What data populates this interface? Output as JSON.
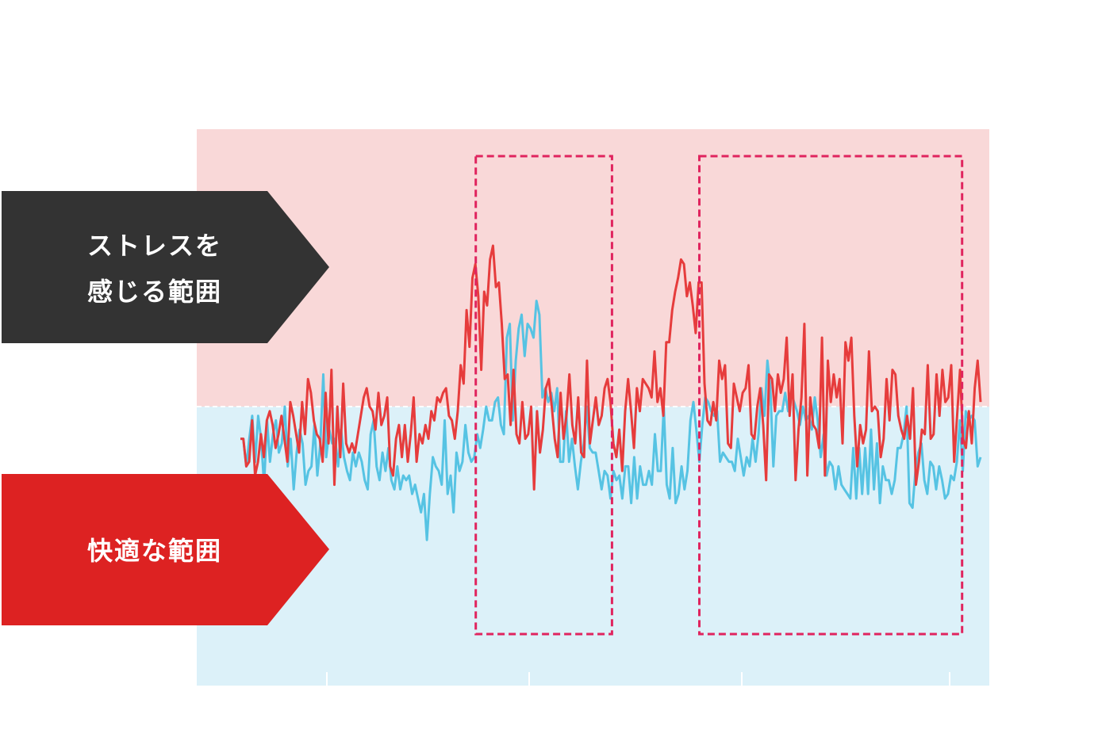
{
  "labels": {
    "stress_line1": "ストレスを",
    "stress_line2": "感じる範囲",
    "comfort": "快適な範囲"
  },
  "colors": {
    "stress_zone_bg": "#f9d8d8",
    "comfort_zone_bg": "#dcf1f9",
    "stress_series": "#e63c3c",
    "comfort_series": "#56c3e3",
    "highlight_box": "#e0245e",
    "stress_label_bg": "#333333",
    "comfort_label_bg": "#dd2222"
  },
  "chart_data": {
    "type": "line",
    "title": "",
    "xlabel": "",
    "ylabel": "",
    "xlim": [
      0,
      1000
    ],
    "ylim": [
      0,
      100
    ],
    "stress_threshold": 50,
    "grid": false,
    "legend": "none",
    "highlight_ranges": [
      [
        318,
        502
      ],
      [
        620,
        975
      ]
    ],
    "series": [
      {
        "values": [
          43,
          43,
          37,
          43,
          48,
          38,
          48,
          43,
          33,
          47,
          38,
          44,
          47,
          40,
          42,
          50,
          37,
          43,
          32,
          40,
          45,
          42,
          33,
          36,
          37,
          46,
          35,
          42,
          57,
          39,
          45,
          42,
          43,
          37,
          45,
          39,
          36,
          34,
          40,
          37,
          40,
          38,
          34,
          32,
          44,
          47,
          37,
          34,
          40,
          36,
          41,
          34,
          32,
          37,
          32,
          35,
          34,
          35,
          31,
          33,
          30,
          27,
          31,
          21,
          31,
          39,
          37,
          36,
          33,
          47,
          31,
          35,
          27,
          40,
          36,
          38,
          46,
          40,
          38,
          39,
          44,
          41,
          45,
          50,
          47,
          47,
          51,
          52,
          46,
          44,
          65,
          68,
          47,
          60,
          67,
          70,
          61,
          68,
          67,
          65,
          73,
          70,
          52,
          54,
          51,
          53,
          49,
          54,
          38,
          38,
          49,
          38,
          43,
          37,
          32,
          38,
          42,
          50,
          41,
          40,
          40,
          36,
          32,
          36,
          35,
          30,
          36,
          34,
          35,
          30,
          37,
          37,
          29,
          39,
          30,
          37,
          33,
          33,
          36,
          33,
          44,
          36,
          36,
          50,
          33,
          30,
          41,
          29,
          31,
          37,
          32,
          36,
          47,
          51,
          45,
          38,
          46,
          52,
          51,
          49,
          48,
          49,
          38,
          40,
          39,
          38,
          38,
          36,
          43,
          39,
          35,
          39,
          37,
          43,
          38,
          44,
          54,
          48,
          60,
          54,
          37,
          48,
          49,
          49,
          53,
          49,
          53,
          51,
          49,
          46,
          50,
          47,
          48,
          45,
          52,
          47,
          39,
          44,
          35,
          38,
          37,
          32,
          37,
          33,
          32,
          31,
          30,
          41,
          30,
          41,
          31,
          41,
          31,
          45,
          32,
          42,
          29,
          37,
          34,
          34,
          31,
          34,
          41,
          41,
          44,
          50,
          29,
          28,
          36,
          40,
          42,
          34,
          31,
          38,
          37,
          32,
          37,
          34,
          30,
          31,
          35,
          34,
          38,
          47,
          36,
          49,
          47,
          48,
          47,
          37,
          39
        ]
      },
      {
        "values": [
          43,
          43,
          37,
          38,
          47,
          35,
          38,
          44,
          39,
          47,
          49,
          46,
          41,
          44,
          48,
          43,
          38,
          51,
          48,
          44,
          40,
          51,
          44,
          56,
          53,
          47,
          44,
          43,
          38,
          53,
          42,
          58,
          33,
          50,
          39,
          55,
          42,
          40,
          42,
          40,
          44,
          48,
          52,
          54,
          50,
          49,
          45,
          53,
          46,
          48,
          52,
          37,
          35,
          43,
          46,
          39,
          46,
          38,
          44,
          52,
          38,
          44,
          42,
          46,
          43,
          49,
          47,
          52,
          51,
          53,
          54,
          48,
          47,
          43,
          49,
          59,
          55,
          71,
          63,
          78,
          81,
          74,
          58,
          75,
          72,
          82,
          85,
          76,
          77,
          68,
          56,
          57,
          46,
          58,
          44,
          42,
          51,
          43,
          44,
          50,
          32,
          49,
          40,
          45,
          54,
          56,
          50,
          43,
          39,
          53,
          43,
          48,
          57,
          46,
          42,
          52,
          40,
          39,
          60,
          42,
          47,
          52,
          46,
          48,
          54,
          56,
          51,
          42,
          39,
          45,
          36,
          49,
          56,
          49,
          41,
          54,
          49,
          56,
          55,
          54,
          52,
          62,
          51,
          54,
          48,
          64,
          64,
          71,
          75,
          78,
          82,
          81,
          74,
          77,
          72,
          66,
          77,
          77,
          55,
          47,
          46,
          51,
          47,
          60,
          56,
          59,
          42,
          41,
          55,
          52,
          49,
          53,
          54,
          59,
          44,
          43,
          50,
          54,
          46,
          34,
          57,
          56,
          49,
          57,
          53,
          56,
          65,
          48,
          57,
          34,
          45,
          52,
          68,
          35,
          52,
          46,
          45,
          41,
          65,
          35,
          60,
          51,
          57,
          52,
          56,
          42,
          64,
          60,
          65,
          48,
          37,
          46,
          42,
          45,
          62,
          49,
          50,
          49,
          39,
          43,
          56,
          47,
          58,
          57,
          48,
          45,
          43,
          48,
          43,
          54,
          33,
          38,
          45,
          44,
          59,
          43,
          44,
          57,
          48,
          58,
          51,
          52,
          59,
          38,
          48,
          58,
          43,
          41,
          49,
          42,
          54,
          60,
          51
        ]
      }
    ]
  }
}
